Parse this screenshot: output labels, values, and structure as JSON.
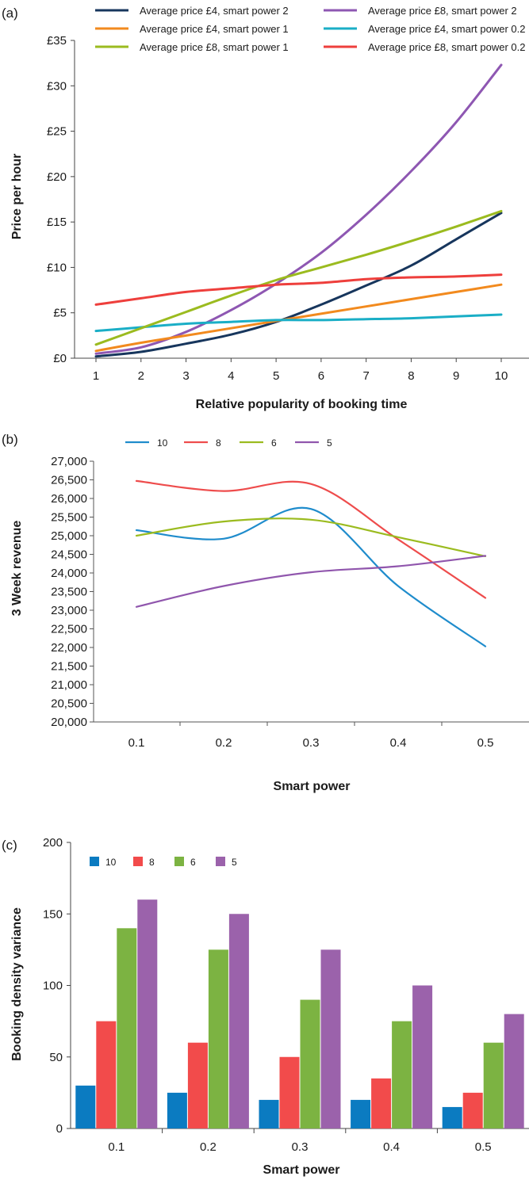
{
  "chart_data": [
    {
      "panel_label": "(a)",
      "type": "line",
      "xlabel": "Relative popularity of booking time",
      "ylabel": "Price per hour",
      "x": [
        1,
        2,
        3,
        4,
        5,
        6,
        7,
        8,
        9,
        10
      ],
      "xlim": [
        1,
        10
      ],
      "ylim": [
        0,
        35
      ],
      "yticks": [
        0,
        5,
        10,
        15,
        20,
        25,
        30,
        35
      ],
      "ytick_labels": [
        "£0",
        "£5",
        "£10",
        "£15",
        "£20",
        "£25",
        "£30",
        "£35"
      ],
      "xtick_labels": [
        "1",
        "2",
        "3",
        "4",
        "5",
        "6",
        "7",
        "8",
        "9",
        "10"
      ],
      "legend_placement": "top",
      "series": [
        {
          "name": "Average price £4, smart power 2",
          "color": "#17365d",
          "values": [
            0.2,
            0.7,
            1.6,
            2.6,
            4.0,
            5.9,
            8.0,
            10.2,
            13.1,
            16.0
          ]
        },
        {
          "name": "Average price £8, smart power 2",
          "color": "#8e57b2",
          "values": [
            0.5,
            1.2,
            2.9,
            5.3,
            8.2,
            11.6,
            15.8,
            20.6,
            26.0,
            32.3
          ]
        },
        {
          "name": "Average price £4, smart power 1",
          "color": "#f28a1e",
          "values": [
            0.8,
            1.7,
            2.5,
            3.3,
            4.1,
            4.9,
            5.7,
            6.5,
            7.3,
            8.1
          ]
        },
        {
          "name": "Average price £4, smart power 0.2",
          "color": "#1aaec6",
          "values": [
            3.0,
            3.4,
            3.8,
            4.0,
            4.2,
            4.2,
            4.3,
            4.4,
            4.6,
            4.8
          ]
        },
        {
          "name": "Average price £8, smart power 1",
          "color": "#9bbb1f",
          "values": [
            1.5,
            3.3,
            5.1,
            6.9,
            8.6,
            10.0,
            11.4,
            12.9,
            14.5,
            16.2
          ]
        },
        {
          "name": "Average price £8, smart power 0.2",
          "color": "#ee3f3c",
          "values": [
            5.9,
            6.6,
            7.3,
            7.7,
            8.1,
            8.3,
            8.7,
            8.9,
            9.0,
            9.2
          ]
        }
      ]
    },
    {
      "panel_label": "(b)",
      "type": "line",
      "xlabel": "Smart power",
      "ylabel": "3 Week revenue",
      "categories": [
        "0.1",
        "0.2",
        "0.3",
        "0.4",
        "0.5"
      ],
      "ylim": [
        20000,
        27000
      ],
      "yticks": [
        20000,
        20500,
        21000,
        21500,
        22000,
        22500,
        23000,
        23500,
        24000,
        24500,
        25000,
        25500,
        26000,
        26500,
        27000
      ],
      "ytick_labels": [
        "20,000",
        "20,500",
        "21,000",
        "21,500",
        "22,000",
        "22,500",
        "23,000",
        "23,500",
        "24,000",
        "24,500",
        "25,000",
        "25,500",
        "26,000",
        "26,500",
        "27,000"
      ],
      "legend_placement": "top-left",
      "series": [
        {
          "name": "10",
          "color": "#1f8ccc",
          "values": [
            25150,
            24920,
            25720,
            23650,
            22030
          ]
        },
        {
          "name": "8",
          "color": "#ee4c4c",
          "values": [
            26470,
            26200,
            26390,
            24900,
            23330
          ]
        },
        {
          "name": "6",
          "color": "#9bbb1f",
          "values": [
            25000,
            25380,
            25430,
            24960,
            24450
          ]
        },
        {
          "name": "5",
          "color": "#9056ad",
          "values": [
            23090,
            23650,
            24020,
            24180,
            24460
          ]
        }
      ]
    },
    {
      "panel_label": "(c)",
      "type": "bar",
      "xlabel": "Smart power",
      "ylabel": "Booking density variance",
      "categories": [
        "0.1",
        "0.2",
        "0.3",
        "0.4",
        "0.5"
      ],
      "ylim": [
        0,
        200
      ],
      "yticks": [
        0,
        50,
        100,
        150,
        200
      ],
      "ytick_labels": [
        "0",
        "50",
        "100",
        "150",
        "200"
      ],
      "legend_placement": "top-left",
      "series": [
        {
          "name": "10",
          "color": "#0b7bc1",
          "values": [
            30,
            25,
            20,
            20,
            15
          ]
        },
        {
          "name": "8",
          "color": "#f24b4b",
          "values": [
            75,
            60,
            50,
            35,
            25
          ]
        },
        {
          "name": "6",
          "color": "#7cb342",
          "values": [
            140,
            125,
            90,
            75,
            60
          ]
        },
        {
          "name": "5",
          "color": "#9b62ab",
          "values": [
            160,
            150,
            125,
            100,
            80
          ]
        }
      ]
    }
  ]
}
